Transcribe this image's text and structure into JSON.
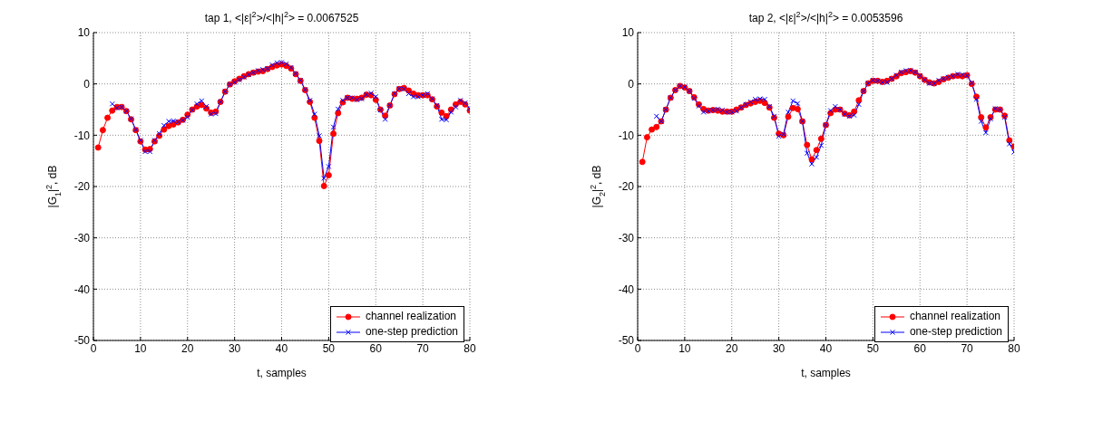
{
  "chart_data": [
    {
      "type": "line",
      "title": "tap 1,  <|ε|$^{2}$>/<|h|$^{2}$> = 0.0067525",
      "xlabel": "t, samples",
      "ylabel": "|G$_{1}$|$^{2}$, dB",
      "x": [
        1,
        2,
        3,
        4,
        5,
        6,
        7,
        8,
        9,
        10,
        11,
        12,
        13,
        14,
        15,
        16,
        17,
        18,
        19,
        20,
        21,
        22,
        23,
        24,
        25,
        26,
        27,
        28,
        29,
        30,
        31,
        32,
        33,
        34,
        35,
        36,
        37,
        38,
        39,
        40,
        41,
        42,
        43,
        44,
        45,
        46,
        47,
        48,
        49,
        50,
        51,
        52,
        53,
        54,
        55,
        56,
        57,
        58,
        59,
        60,
        61,
        62,
        63,
        64,
        65,
        66,
        67,
        68,
        69,
        70,
        71,
        72,
        73,
        74,
        75,
        76,
        77,
        78,
        79,
        80
      ],
      "series": [
        {
          "name": "channel realization",
          "color": "#ff0000",
          "marker": "circle",
          "values": [
            -12.4,
            -9,
            -6.6,
            -5.2,
            -4.5,
            -4.5,
            -5.3,
            -6.9,
            -9,
            -11.2,
            -12.8,
            -12.7,
            -11.2,
            -10.1,
            -8.9,
            -8.2,
            -7.9,
            -7.5,
            -7,
            -6,
            -5,
            -4.4,
            -4.1,
            -4.8,
            -5.6,
            -5.4,
            -3.5,
            -1.5,
            -0.1,
            0.5,
            1,
            1.5,
            1.9,
            2.2,
            2.4,
            2.5,
            2.9,
            3.3,
            3.6,
            3.8,
            3.5,
            3,
            1.9,
            0.6,
            -1.2,
            -3.5,
            -6.6,
            -11.1,
            -19.9,
            -17.8,
            -9.7,
            -5.7,
            -3.6,
            -2.7,
            -2.9,
            -2.9,
            -2.7,
            -2.1,
            -2.2,
            -3.1,
            -5,
            -6.2,
            -4.2,
            -2,
            -1,
            -0.8,
            -1.3,
            -1.9,
            -2.2,
            -2.2,
            -2.2,
            -3,
            -4.4,
            -5.6,
            -6.3,
            -5,
            -4,
            -3.5,
            -4,
            -5.2
          ]
        },
        {
          "name": "one-step prediction",
          "color": "#0000ff",
          "marker": "cross",
          "values": [
            null,
            null,
            null,
            -3.9,
            -4.7,
            -4.5,
            -5.3,
            -6.8,
            -8.9,
            -11,
            -13.2,
            -13.2,
            -11,
            -9.7,
            -8.1,
            -7.3,
            -7.2,
            -7.4,
            -7.1,
            -6.5,
            -5.1,
            -3.9,
            -3.3,
            -4.4,
            -5.9,
            -5.8,
            -3.5,
            -1.5,
            -0.1,
            0.3,
            0.8,
            1.3,
            1.8,
            2.2,
            2.6,
            2.8,
            3,
            3.7,
            4.1,
            4.2,
            3.9,
            3.2,
            2,
            0.7,
            -1.1,
            -3.2,
            -5.9,
            -10.1,
            -18.4,
            -16.1,
            -8.4,
            -4.9,
            -3.2,
            -2.7,
            -2.7,
            -3.1,
            -2.9,
            -2.1,
            -1.8,
            -2.5,
            -5.1,
            -6.9,
            -4.2,
            -1.9,
            -0.9,
            -1,
            -1.9,
            -2.5,
            -2.5,
            -2.2,
            -1.9,
            -2.9,
            -4.2,
            -6.9,
            -7,
            -5.5,
            -4.5,
            -3.2,
            -3.7,
            -4.8
          ]
        }
      ],
      "xlim": [
        0,
        80
      ],
      "xticks": [
        0,
        10,
        20,
        30,
        40,
        50,
        60,
        70,
        80
      ],
      "ylim": [
        -50,
        10
      ],
      "yticks": [
        -50,
        -40,
        -30,
        -20,
        -10,
        0,
        10
      ],
      "grid": true,
      "legend": "bottom right",
      "line_style": "solid"
    },
    {
      "type": "line",
      "title": "tap 2,  <|ε|$^{2}$>/<|h|$^{2}$> = 0.0053596",
      "xlabel": "t, samples",
      "ylabel": "|G$_{2}$|$^{2}$, dB",
      "x": [
        1,
        2,
        3,
        4,
        5,
        6,
        7,
        8,
        9,
        10,
        11,
        12,
        13,
        14,
        15,
        16,
        17,
        18,
        19,
        20,
        21,
        22,
        23,
        24,
        25,
        26,
        27,
        28,
        29,
        30,
        31,
        32,
        33,
        34,
        35,
        36,
        37,
        38,
        39,
        40,
        41,
        42,
        43,
        44,
        45,
        46,
        47,
        48,
        49,
        50,
        51,
        52,
        53,
        54,
        55,
        56,
        57,
        58,
        59,
        60,
        61,
        62,
        63,
        64,
        65,
        66,
        67,
        68,
        69,
        70,
        71,
        72,
        73,
        74,
        75,
        76,
        77,
        78,
        79,
        80
      ],
      "series": [
        {
          "name": "channel realization",
          "color": "#ff0000",
          "marker": "circle",
          "values": [
            -15.2,
            -10.4,
            -8.9,
            -8.4,
            -7.3,
            -5,
            -2.7,
            -1.2,
            -0.4,
            -0.7,
            -1.4,
            -2.6,
            -4,
            -4.9,
            -5.2,
            -5.1,
            -5.2,
            -5.4,
            -5.4,
            -5.4,
            -5,
            -4.6,
            -4.1,
            -3.8,
            -3.5,
            -3.3,
            -3.7,
            -4.6,
            -6.6,
            -9.7,
            -10,
            -6.4,
            -4.7,
            -4.9,
            -7.3,
            -11.9,
            -14.7,
            -12.9,
            -10.7,
            -8,
            -5.7,
            -5,
            -5,
            -5.8,
            -6.1,
            -5.4,
            -3.2,
            -1.4,
            0.1,
            0.6,
            0.6,
            0.4,
            0.6,
            1,
            1.5,
            2.1,
            2.3,
            2.5,
            2.2,
            1.5,
            0.8,
            0.3,
            0.1,
            0.4,
            0.9,
            1.2,
            1.5,
            1.6,
            1.5,
            1.7,
            0,
            -2.5,
            -6.5,
            -8.5,
            -6.5,
            -5,
            -5,
            -6.2,
            -11,
            -12.2
          ]
        },
        {
          "name": "one-step prediction",
          "color": "#0000ff",
          "marker": "cross",
          "values": [
            null,
            null,
            null,
            -6.3,
            -7.3,
            -5,
            -2.7,
            -1.2,
            -0.4,
            -0.6,
            -1.4,
            -2.8,
            -4.3,
            -5.5,
            -5.3,
            -5.1,
            -4.9,
            -5.1,
            -5.5,
            -5.5,
            -5.3,
            -4.6,
            -4,
            -3.5,
            -3,
            -2.9,
            -3,
            -4.4,
            -6.3,
            -10.2,
            -9.8,
            -5.5,
            -3.3,
            -3.8,
            -7.3,
            -13.5,
            -15.6,
            -14.3,
            -12,
            -8,
            -5.2,
            -4.4,
            -5,
            -5.9,
            -6.3,
            -6.1,
            -4,
            -1.4,
            0.1,
            0.7,
            0.6,
            0.3,
            0.3,
            1,
            1.7,
            2.3,
            2.6,
            2.6,
            2.3,
            1.6,
            0.8,
            0.1,
            0.1,
            0.7,
            1,
            1.3,
            1.5,
            1.9,
            1.8,
            1.6,
            0.2,
            -3,
            -7.3,
            -9.5,
            -6.8,
            -4.8,
            -5,
            -6.5,
            -11.7,
            -13.3
          ]
        }
      ],
      "xlim": [
        0,
        80
      ],
      "xticks": [
        0,
        10,
        20,
        30,
        40,
        50,
        60,
        70,
        80
      ],
      "ylim": [
        -50,
        10
      ],
      "yticks": [
        -50,
        -40,
        -30,
        -20,
        -10,
        0,
        10
      ],
      "grid": true,
      "legend": "bottom right",
      "line_style": "solid"
    }
  ]
}
